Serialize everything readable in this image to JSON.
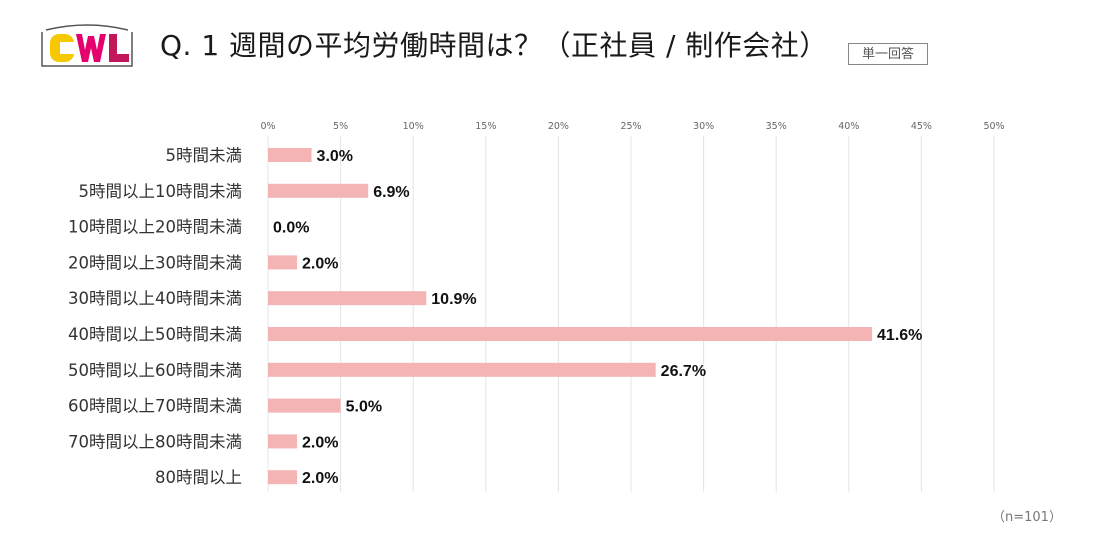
{
  "header": {
    "logo_text": "CWL",
    "title": "Q. 1 週間の平均労働時間は？（正社員 / 制作会社）",
    "badge": "単一回答"
  },
  "colors": {
    "bar": "#f4b4b4",
    "grid": "#e4e4e4",
    "logo_yellow": "#f5c800",
    "logo_pink": "#e6006e",
    "logo_magenta": "#c2185b"
  },
  "chart_data": {
    "type": "bar",
    "orientation": "horizontal",
    "categories": [
      "5時間未満",
      "5時間以上10時間未満",
      "10時間以上20時間未満",
      "20時間以上30時間未満",
      "30時間以上40時間未満",
      "40時間以上50時間未満",
      "50時間以上60時間未満",
      "60時間以上70時間未満",
      "70時間以上80時間未満",
      "80時間以上"
    ],
    "values": [
      3.0,
      6.9,
      0.0,
      2.0,
      10.9,
      41.6,
      26.7,
      5.0,
      2.0,
      2.0
    ],
    "value_labels": [
      "3.0%",
      "6.9%",
      "0.0%",
      "2.0%",
      "10.9%",
      "41.6%",
      "26.7%",
      "5.0%",
      "2.0%",
      "2.0%"
    ],
    "xlim": [
      0,
      50
    ],
    "ticks": [
      "0%",
      "5%",
      "10%",
      "15%",
      "20%",
      "25%",
      "30%",
      "35%",
      "40%",
      "45%",
      "50%"
    ],
    "grid": true,
    "axis_position": "top"
  },
  "footer": {
    "note": "（n=101）"
  }
}
